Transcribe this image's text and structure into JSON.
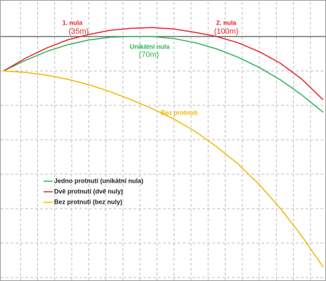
{
  "chart_data": {
    "type": "line",
    "x": [
      0,
      10,
      20,
      30,
      40,
      50,
      60,
      70,
      80,
      90,
      100,
      110,
      120,
      130,
      140,
      150
    ],
    "series": [
      {
        "name": "Jedno protnutí (unikátní nula)",
        "color": "#2eb35a",
        "values": [
          -5,
          -3.5,
          -2.2,
          -1.2,
          -0.5,
          -0.1,
          0,
          0,
          -0.3,
          -0.9,
          -1.8,
          -3,
          -4.5,
          -6.3,
          -8.5,
          -11
        ]
      },
      {
        "name": "Dvě protnutí  (dvě nuly)",
        "color": "#e8232a",
        "values": [
          -5,
          -3.2,
          -1.7,
          -0.5,
          0.3,
          0.9,
          1.2,
          1.3,
          1.1,
          0.6,
          0,
          -0.9,
          -2.2,
          -3.9,
          -6.2,
          -9.2
        ]
      },
      {
        "name": "Bez protnutí (bez nuly)",
        "color": "#f2b800",
        "values": [
          -5,
          -5.2,
          -5.6,
          -6.2,
          -7,
          -8,
          -9.2,
          -10.5,
          -12,
          -13.8,
          -16,
          -18.5,
          -21.5,
          -25,
          -29,
          -33.5
        ]
      }
    ],
    "annotations": [
      "1. nula",
      "(35m)",
      "2. nula",
      "(100m)",
      "Unikátní nula",
      "(70m)",
      "Bez protnutí"
    ],
    "xlim": [
      0,
      150
    ],
    "xticks": [
      8,
      16,
      24,
      32,
      40,
      48,
      56,
      64,
      72,
      80,
      88,
      96,
      104,
      112,
      120,
      128,
      136,
      144
    ],
    "ylim": [
      -35,
      5
    ],
    "yticks": [
      -35,
      -30,
      -25,
      -20,
      -15,
      -10,
      -5,
      0
    ],
    "grid": true,
    "legend": "left"
  }
}
